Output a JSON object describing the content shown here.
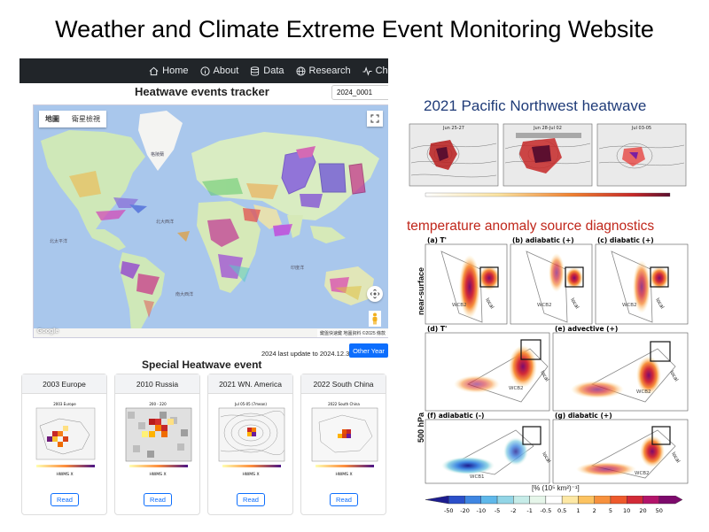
{
  "slide_title": "Weather and Climate Extreme Event Monitoring Website",
  "navbar": {
    "items": [
      {
        "label": "Home",
        "icon": "home-icon"
      },
      {
        "label": "About",
        "icon": "info-icon"
      },
      {
        "label": "Data",
        "icon": "database-icon"
      },
      {
        "label": "Research",
        "icon": "globe-icon"
      },
      {
        "label": "Charts",
        "icon": "activity-icon"
      }
    ]
  },
  "tracker": {
    "title": "Heatwave events tracker",
    "selected_event": "2024_0001"
  },
  "map": {
    "tabs": [
      "地圖",
      "衛星檢視"
    ],
    "label_north_atlantic": "北大西洋",
    "label_north_pacific": "北太平洋",
    "label_south_atlantic": "南大西洋",
    "label_indian_ocean": "印度洋",
    "label_greenland": "格陵蘭",
    "google_logo": "Google",
    "attribution": "鍵盤快速鍵  地圖資料 ©2025  條款"
  },
  "update": {
    "text": "2024 last update to 2024.12.31",
    "other_year_label": "Other Year"
  },
  "special": {
    "title": "Special Heatwave event",
    "cards": [
      {
        "label": "2003 Europe",
        "fig_title": "2003 Europe",
        "xlabel": "HWMS X",
        "button": "Read"
      },
      {
        "label": "2010 Russia",
        "fig_title": "200 - 220",
        "xlabel": "HWMS X",
        "button": "Read"
      },
      {
        "label": "2021 WN. America",
        "fig_title": "Jul 05-05 (7mean)",
        "xlabel": "HWMS X",
        "button": "Read"
      },
      {
        "label": "2022 South China",
        "fig_title": "2022 South China",
        "xlabel": "HWMS X",
        "button": "Read"
      }
    ]
  },
  "pnw": {
    "title": "2021 Pacific Northwest heatwave",
    "panels": [
      "Jun 25-27",
      "Jun 28-Jul 02",
      "Jul 03-05"
    ]
  },
  "diagnostics": {
    "title": "temperature anomaly source diagnostics",
    "row_label_top": "near-surface",
    "row_label_bottom": "500 hPa",
    "panels": [
      {
        "label": "(a) T'",
        "box": "local",
        "region": "WCB2"
      },
      {
        "label": "(b) adiabatic (+)",
        "box": "local",
        "region": "WCB2"
      },
      {
        "label": "(c) diabatic (+)",
        "box": "local",
        "region": "WCB2"
      },
      {
        "label": "(d) T'",
        "box": "local",
        "region": "WCB2"
      },
      {
        "label": "(e) advective (+)",
        "box": "local",
        "region": "WCB2"
      },
      {
        "label": "(f) adiabatic (-)",
        "box": "local",
        "region": "WCB1"
      },
      {
        "label": "(g) diabatic (+)",
        "box": "local",
        "region": "WCB2"
      }
    ],
    "colorbar_label": "[% (10⁵ km²)⁻¹]",
    "colorbar_ticks": [
      "-50",
      "-20",
      "-10",
      "-5",
      "-2",
      "-1",
      "-0.5",
      "0.5",
      "1",
      "2",
      "5",
      "10",
      "20",
      "50"
    ],
    "colorbar_colors": [
      "#1d1d8f",
      "#2b4fc9",
      "#3f86e2",
      "#5fb8ea",
      "#92d5e6",
      "#c6ece8",
      "#e6f6ea",
      "#ffffff",
      "#fde8a5",
      "#fcc361",
      "#f7913d",
      "#ee5a2c",
      "#d22a37",
      "#b3146a",
      "#7d0a6c"
    ]
  }
}
